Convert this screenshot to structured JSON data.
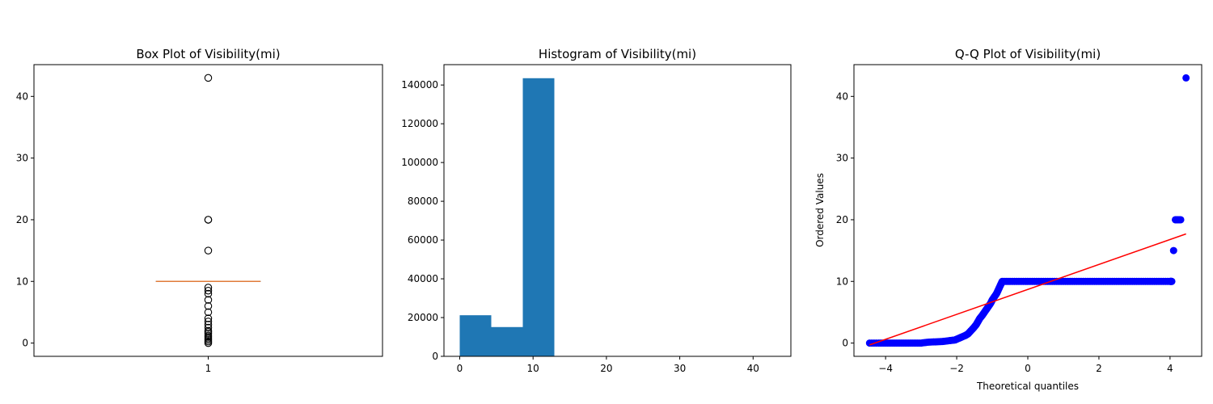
{
  "chart_data": [
    {
      "type": "box",
      "title": "Box Plot of Visibility(mi)",
      "xlabel": "",
      "ylabel": "",
      "x_ticks": [
        "1"
      ],
      "ylim": [
        -2.15,
        45.15
      ],
      "y_ticks": [
        0,
        10,
        20,
        30,
        40
      ],
      "box": {
        "position": 1,
        "median": 10,
        "q1": 10,
        "q3": 10,
        "whisker_low": 10,
        "whisker_high": 10
      },
      "outliers": [
        43,
        20,
        20,
        15,
        9,
        8.5,
        8,
        7,
        6,
        5,
        4,
        3.5,
        3,
        2.5,
        2,
        1.8,
        1.5,
        1.2,
        1,
        0.75,
        0.5,
        0.25,
        0
      ],
      "colors": {
        "box": "#000000",
        "median": "#e07b39",
        "outlier_edge": "#000000"
      }
    },
    {
      "type": "bar",
      "title": "Histogram of Visibility(mi)",
      "xlabel": "",
      "ylabel": "",
      "xlim": [
        -2.15,
        45.15
      ],
      "ylim": [
        0,
        150500
      ],
      "x_ticks": [
        0,
        10,
        20,
        30,
        40
      ],
      "y_ticks": [
        0,
        20000,
        40000,
        60000,
        80000,
        100000,
        120000,
        140000
      ],
      "bins": [
        {
          "x0": 0,
          "x1": 4.3,
          "count": 21200
        },
        {
          "x0": 4.3,
          "x1": 8.6,
          "count": 15100
        },
        {
          "x0": 8.6,
          "x1": 12.9,
          "count": 143500
        },
        {
          "x0": 12.9,
          "x1": 17.2,
          "count": 0
        },
        {
          "x0": 17.2,
          "x1": 21.5,
          "count": 2
        },
        {
          "x0": 21.5,
          "x1": 25.8,
          "count": 0
        },
        {
          "x0": 25.8,
          "x1": 30.1,
          "count": 0
        },
        {
          "x0": 30.1,
          "x1": 34.4,
          "count": 0
        },
        {
          "x0": 34.4,
          "x1": 38.7,
          "count": 0
        },
        {
          "x0": 38.7,
          "x1": 43,
          "count": 1
        }
      ],
      "colors": {
        "bar": "#1f77b4"
      }
    },
    {
      "type": "scatter",
      "title": "Q-Q Plot of Visibility(mi)",
      "xlabel": "Theoretical quantiles",
      "ylabel": "Ordered Values",
      "xlim": [
        -4.89,
        4.89
      ],
      "ylim": [
        -2.15,
        45.15
      ],
      "x_ticks": [
        -4,
        -2,
        0,
        2,
        4
      ],
      "y_ticks": [
        0,
        10,
        20,
        30,
        40
      ],
      "series": [
        {
          "points": [
            [
              -4.45,
              0
            ],
            [
              -4.2,
              0
            ],
            [
              -4.0,
              0
            ],
            [
              -3.8,
              0
            ],
            [
              -3.6,
              0
            ],
            [
              -3.4,
              0
            ],
            [
              -3.2,
              0
            ],
            [
              -3.0,
              0
            ],
            [
              -2.8,
              0.15
            ],
            [
              -2.6,
              0.2
            ],
            [
              -2.4,
              0.25
            ],
            [
              -2.2,
              0.4
            ],
            [
              -2.05,
              0.5
            ],
            [
              -1.95,
              0.75
            ],
            [
              -1.85,
              1.0
            ],
            [
              -1.75,
              1.25
            ],
            [
              -1.68,
              1.5
            ],
            [
              -1.6,
              2.0
            ],
            [
              -1.52,
              2.5
            ],
            [
              -1.45,
              3.0
            ],
            [
              -1.4,
              3.5
            ],
            [
              -1.35,
              4.0
            ],
            [
              -1.28,
              4.5
            ],
            [
              -1.22,
              5.0
            ],
            [
              -1.16,
              5.5
            ],
            [
              -1.1,
              6.0
            ],
            [
              -1.04,
              6.5
            ],
            [
              -1.0,
              7.0
            ],
            [
              -0.94,
              7.5
            ],
            [
              -0.88,
              8.0
            ],
            [
              -0.84,
              8.5
            ],
            [
              -0.8,
              9.0
            ],
            [
              -0.76,
              9.5
            ],
            [
              -0.72,
              10.0
            ],
            [
              -0.5,
              10
            ],
            [
              -0.25,
              10
            ],
            [
              0,
              10
            ],
            [
              0.25,
              10
            ],
            [
              0.5,
              10
            ],
            [
              0.75,
              10
            ],
            [
              1.0,
              10
            ],
            [
              1.25,
              10
            ],
            [
              1.5,
              10
            ],
            [
              1.75,
              10
            ],
            [
              2.0,
              10
            ],
            [
              2.25,
              10
            ],
            [
              2.5,
              10
            ],
            [
              2.75,
              10
            ],
            [
              3.0,
              10
            ],
            [
              3.25,
              10
            ],
            [
              3.5,
              10
            ],
            [
              3.75,
              10
            ],
            [
              4.0,
              10
            ],
            [
              4.05,
              10
            ],
            [
              4.1,
              15
            ],
            [
              4.15,
              20
            ],
            [
              4.2,
              20
            ],
            [
              4.3,
              20
            ],
            [
              4.45,
              43
            ]
          ]
        }
      ],
      "fit_line": {
        "x": [
          -4.45,
          4.45
        ],
        "y": [
          -0.3,
          17.7
        ]
      },
      "colors": {
        "points": "#0000ff",
        "fit_line": "#ff0000"
      }
    }
  ]
}
